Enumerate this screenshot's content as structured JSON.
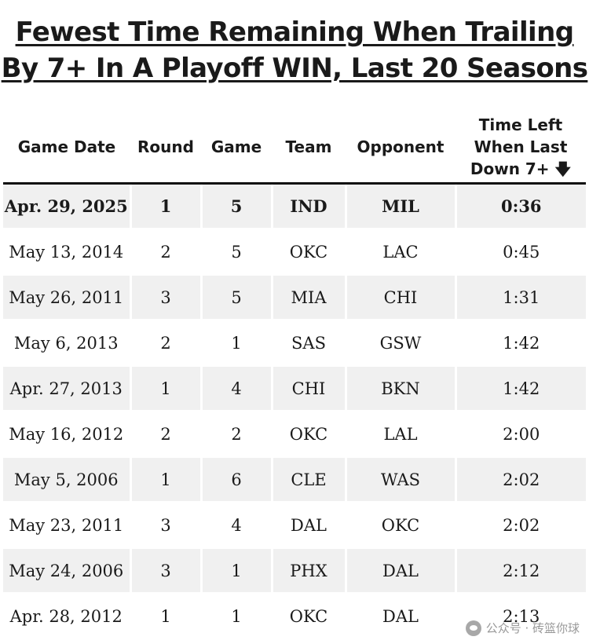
{
  "title_line1": "Fewest Time Remaining When Trailing",
  "title_line2": "By 7+ In A Playoff WIN, Last 20 Seasons",
  "headers": {
    "date": "Game Date",
    "round": "Round",
    "game": "Game",
    "team": "Team",
    "opponent": "Opponent",
    "time_line1": "Time Left",
    "time_line2": "When Last",
    "time_line3": "Down 7+",
    "sort_arrow": "🡇"
  },
  "watermark": "公众号 · 砖篮你球",
  "chart_data": {
    "type": "table",
    "title": "Fewest Time Remaining When Trailing By 7+ In A Playoff WIN, Last 20 Seasons",
    "columns": [
      "Game Date",
      "Round",
      "Game",
      "Team",
      "Opponent",
      "Time Left When Last Down 7+"
    ],
    "rows": [
      [
        "Apr. 29, 2025",
        "1",
        "5",
        "IND",
        "MIL",
        "0:36"
      ],
      [
        "May 13, 2014",
        "2",
        "5",
        "OKC",
        "LAC",
        "0:45"
      ],
      [
        "May 26, 2011",
        "3",
        "5",
        "MIA",
        "CHI",
        "1:31"
      ],
      [
        "May 6, 2013",
        "2",
        "1",
        "SAS",
        "GSW",
        "1:42"
      ],
      [
        "Apr. 27, 2013",
        "1",
        "4",
        "CHI",
        "BKN",
        "1:42"
      ],
      [
        "May 16, 2012",
        "2",
        "2",
        "OKC",
        "LAL",
        "2:00"
      ],
      [
        "May 5, 2006",
        "1",
        "6",
        "CLE",
        "WAS",
        "2:02"
      ],
      [
        "May 23, 2011",
        "3",
        "4",
        "DAL",
        "OKC",
        "2:02"
      ],
      [
        "May 24, 2006",
        "3",
        "1",
        "PHX",
        "DAL",
        "2:12"
      ],
      [
        "Apr. 28, 2012",
        "1",
        "1",
        "OKC",
        "DAL",
        "2:13"
      ]
    ]
  }
}
